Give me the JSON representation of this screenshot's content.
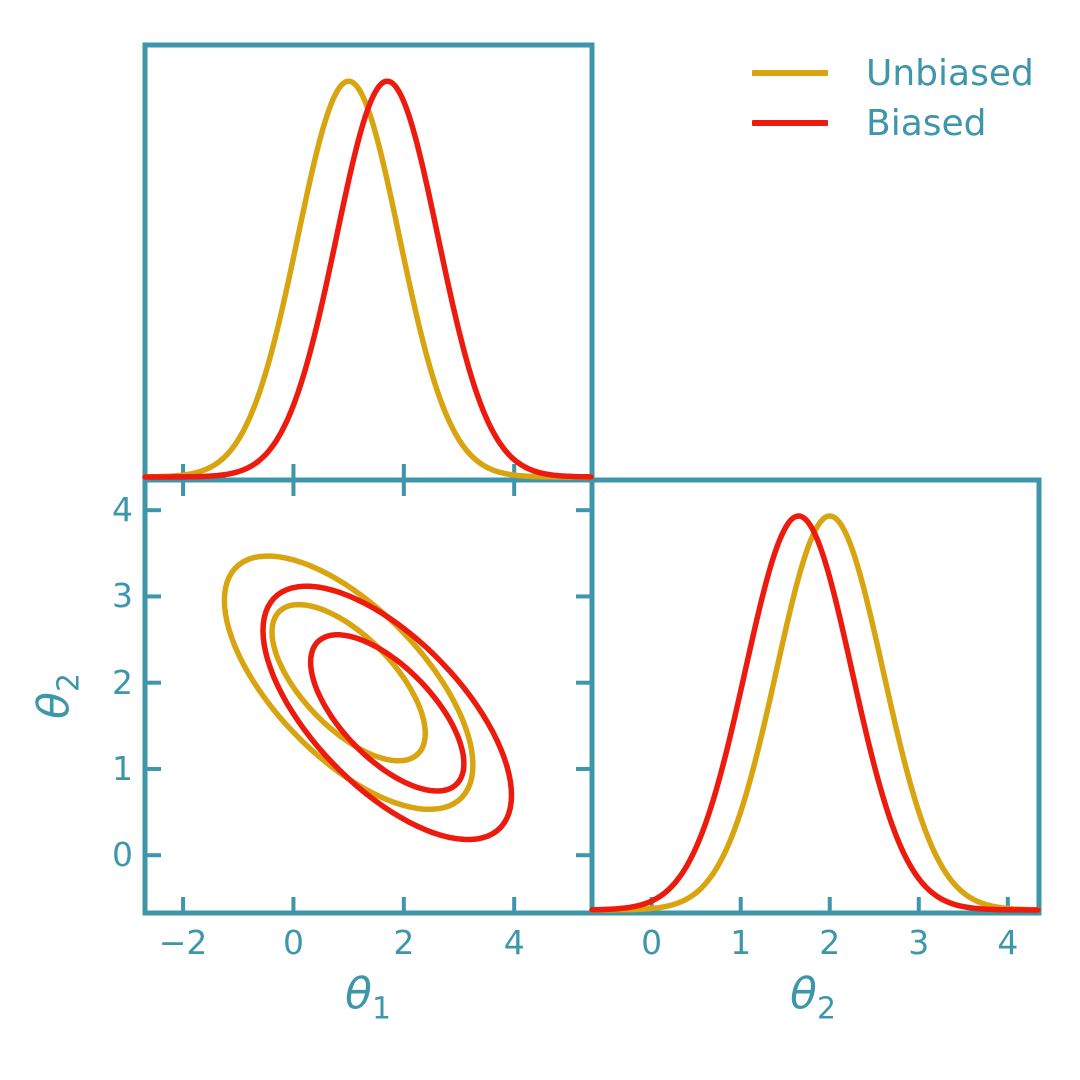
{
  "colors": {
    "background": "#FFFFFF",
    "axis": "#3E96AB",
    "text": "#3E96AB"
  },
  "legend": {
    "items": [
      {
        "label": "Unbiased"
      },
      {
        "label": "Biased"
      }
    ]
  },
  "axes": {
    "theta1": {
      "symbol": "θ",
      "sub": "1",
      "tick_labels": [
        "−2",
        "0",
        "2",
        "4"
      ],
      "tick_values": [
        -2,
        0,
        2,
        4
      ],
      "range": [
        -2.69,
        5.41
      ]
    },
    "theta2": {
      "symbol": "θ",
      "sub": "2",
      "tick_labels": [
        "0",
        "1",
        "2",
        "3",
        "4"
      ],
      "tick_values": [
        0,
        1,
        2,
        3,
        4
      ],
      "range": [
        -0.67,
        4.35
      ]
    }
  },
  "chart_data": {
    "type": "contour",
    "description": "Corner (triangle) plot comparing two bivariate Gaussian posteriors over parameters θ1 and θ2: diagonal panels show 1D marginal densities, off-diagonal panel shows 68% and 95% credible contours.",
    "parameters": [
      "θ1",
      "θ2"
    ],
    "series": [
      {
        "name": "Unbiased",
        "color": "#D8A511",
        "mean": [
          1.0,
          2.0
        ],
        "sigma": [
          0.92,
          0.6
        ],
        "correlation": -0.65
      },
      {
        "name": "Biased",
        "color": "#EC1B0D",
        "mean": [
          1.7,
          1.65
        ],
        "sigma": [
          0.92,
          0.6
        ],
        "correlation": -0.65
      }
    ],
    "contour_levels_probability": [
      0.68,
      0.95
    ],
    "marginal_peak_fraction": 0.91,
    "panels": [
      {
        "position": "top-left",
        "content": "θ1 marginal density (Unbiased and Biased)"
      },
      {
        "position": "bottom-left",
        "content": "θ1 vs θ2 joint 68%/95% contour ellipses"
      },
      {
        "position": "bottom-right",
        "content": "θ2 marginal density (Unbiased and Biased)"
      }
    ],
    "legend_position": "top-right",
    "grid": false
  }
}
